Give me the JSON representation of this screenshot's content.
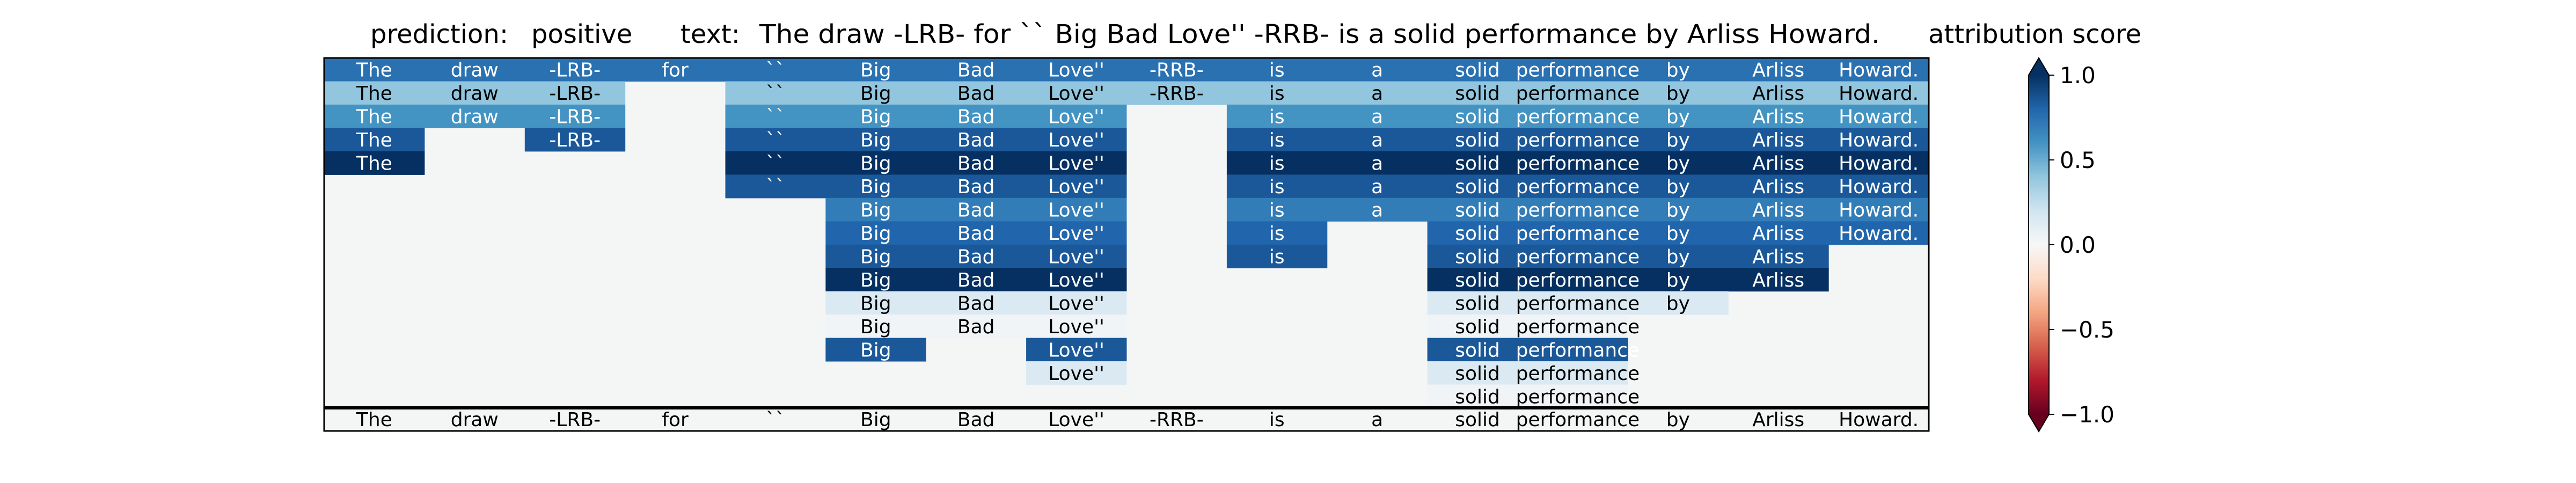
{
  "header": {
    "prediction_label": "prediction:",
    "prediction_value": "positive",
    "text_label": "text:",
    "text_value": "The draw -LRB- for `` Big Bad Love'' -RRB- is a solid performance by Arliss Howard.",
    "colorbar_title": "attribution score"
  },
  "chart_data": {
    "type": "heatmap",
    "tokens": [
      "The",
      "draw",
      "-LRB-",
      "for",
      "``",
      "Big",
      "Bad",
      "Love''",
      "-RRB-",
      "is",
      "a",
      "solid",
      "performance",
      "by",
      "Arliss",
      "Howard."
    ],
    "rows": [
      [
        0.75,
        0.75,
        0.75,
        0.75,
        0.75,
        0.75,
        0.75,
        0.75,
        0.75,
        0.75,
        0.75,
        0.75,
        0.75,
        0.75,
        0.75,
        0.75
      ],
      [
        0.4,
        0.4,
        0.4,
        null,
        0.4,
        0.4,
        0.4,
        0.4,
        0.4,
        0.4,
        0.4,
        0.4,
        0.4,
        0.4,
        0.4,
        0.4
      ],
      [
        0.6,
        0.6,
        0.6,
        null,
        0.6,
        0.6,
        0.6,
        0.6,
        null,
        0.6,
        0.6,
        0.6,
        0.6,
        0.6,
        0.6,
        0.6
      ],
      [
        0.85,
        null,
        0.85,
        null,
        0.85,
        0.85,
        0.85,
        0.85,
        null,
        0.85,
        0.85,
        0.85,
        0.85,
        0.85,
        0.85,
        0.85
      ],
      [
        1.0,
        null,
        null,
        null,
        1.0,
        1.0,
        1.0,
        1.0,
        null,
        1.0,
        1.0,
        1.0,
        1.0,
        1.0,
        1.0,
        1.0
      ],
      [
        null,
        null,
        null,
        null,
        0.85,
        0.85,
        0.85,
        0.85,
        null,
        0.85,
        0.85,
        0.85,
        0.85,
        0.85,
        0.85,
        0.85
      ],
      [
        null,
        null,
        null,
        null,
        null,
        0.7,
        0.7,
        0.7,
        null,
        0.7,
        0.7,
        0.7,
        0.7,
        0.7,
        0.7,
        0.7
      ],
      [
        null,
        null,
        null,
        null,
        null,
        0.8,
        0.8,
        0.8,
        null,
        0.8,
        null,
        0.8,
        0.8,
        0.8,
        0.8,
        0.8
      ],
      [
        null,
        null,
        null,
        null,
        null,
        0.85,
        0.85,
        0.85,
        null,
        0.85,
        null,
        0.85,
        0.85,
        0.85,
        0.85,
        null
      ],
      [
        null,
        null,
        null,
        null,
        null,
        1.0,
        1.0,
        1.0,
        null,
        null,
        null,
        1.0,
        1.0,
        1.0,
        1.0,
        null
      ],
      [
        null,
        null,
        null,
        null,
        null,
        0.15,
        0.15,
        0.15,
        null,
        null,
        null,
        0.15,
        0.15,
        0.15,
        null,
        null
      ],
      [
        null,
        null,
        null,
        null,
        null,
        0.03,
        0.03,
        0.03,
        null,
        null,
        null,
        0.03,
        0.03,
        null,
        null,
        null
      ],
      [
        null,
        null,
        null,
        null,
        null,
        0.85,
        null,
        0.85,
        null,
        null,
        null,
        0.85,
        0.85,
        null,
        null,
        null
      ],
      [
        null,
        null,
        null,
        null,
        null,
        null,
        null,
        0.15,
        null,
        null,
        null,
        0.15,
        0.15,
        null,
        null,
        null
      ],
      [
        null,
        null,
        null,
        null,
        null,
        null,
        null,
        null,
        null,
        null,
        null,
        0.03,
        0.03,
        null,
        null,
        null
      ]
    ],
    "bottom_row": [
      "The",
      "draw",
      "-LRB-",
      "for",
      "``",
      "Big",
      "Bad",
      "Love''",
      "-RRB-",
      "is",
      "a",
      "solid",
      "performance",
      "by",
      "Arliss",
      "Howard."
    ],
    "colorbar": {
      "colormap": "RdBu",
      "range": [
        -1.0,
        1.0
      ],
      "ticks": [
        1.0,
        0.5,
        0.0,
        -0.5,
        -1.0
      ],
      "tick_labels": [
        "1.0",
        "0.5",
        "0.0",
        "−0.5",
        "−1.0"
      ],
      "extend": "both"
    },
    "empty_cell_color": "#f4f6f6"
  }
}
